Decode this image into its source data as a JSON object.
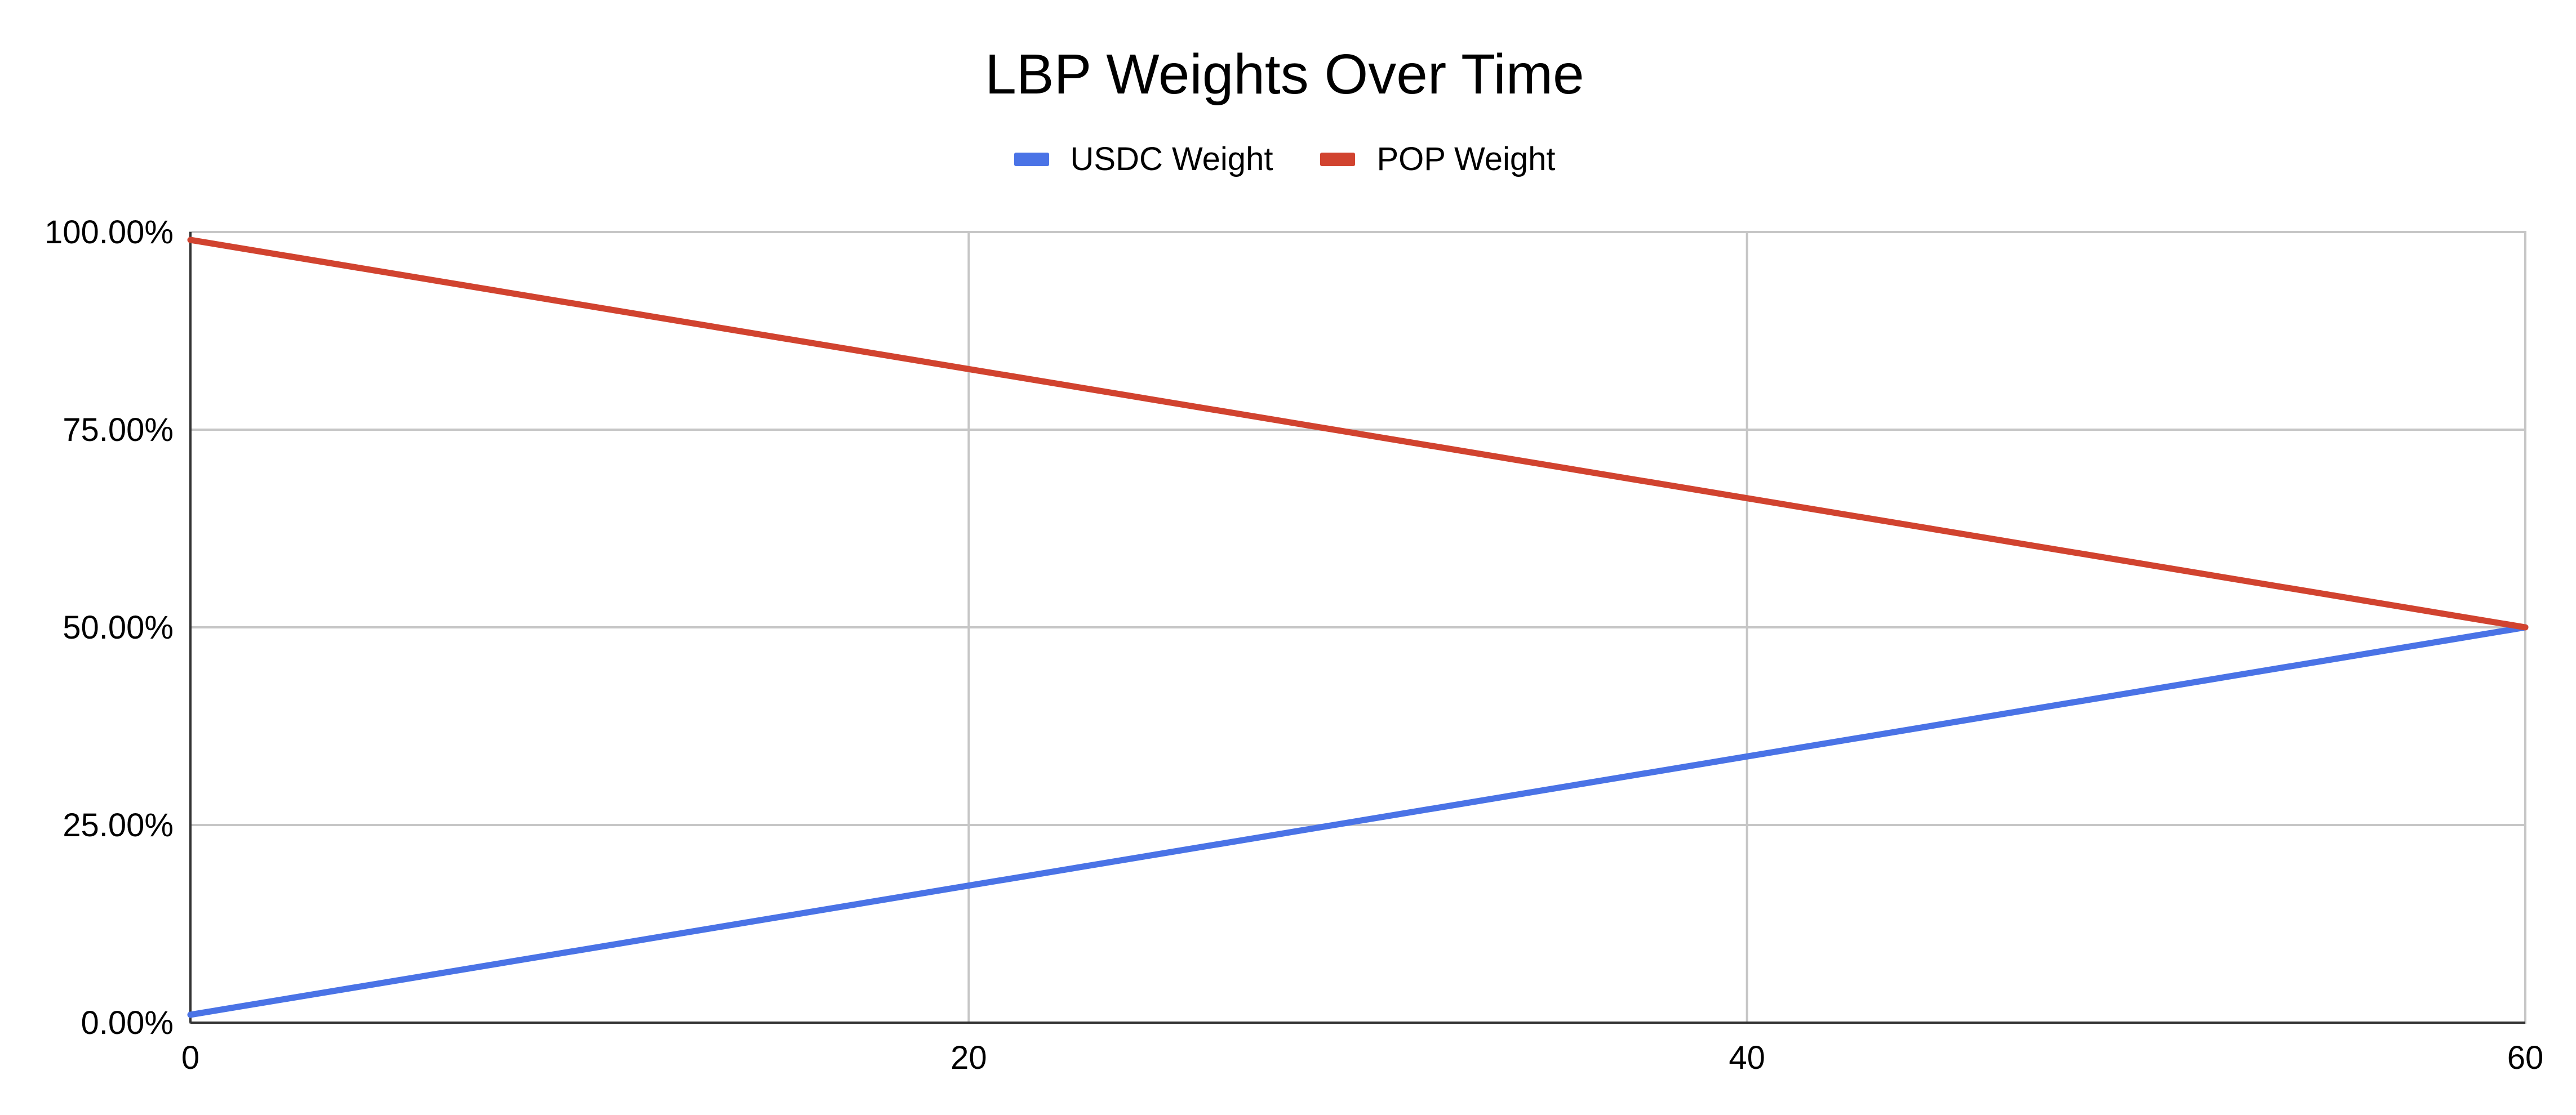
{
  "chart_data": {
    "type": "line",
    "title": "LBP Weights Over Time",
    "xlabel": "",
    "ylabel": "",
    "x": [
      0,
      60
    ],
    "xlim": [
      0,
      60
    ],
    "ylim": [
      0,
      1
    ],
    "x_ticks": [
      0,
      20,
      40,
      60
    ],
    "x_tick_labels": [
      "0",
      "20",
      "40",
      "60"
    ],
    "y_ticks": [
      0,
      0.25,
      0.5,
      0.75,
      1
    ],
    "y_tick_labels": [
      "0.00%",
      "25.00%",
      "50.00%",
      "75.00%",
      "100.00%"
    ],
    "grid": true,
    "legend_position": "top",
    "series": [
      {
        "name": "USDC Weight",
        "color": "#4a73e6",
        "values": [
          0.01,
          0.5
        ]
      },
      {
        "name": "POP Weight",
        "color": "#d1432f",
        "values": [
          0.99,
          0.5
        ]
      }
    ]
  }
}
